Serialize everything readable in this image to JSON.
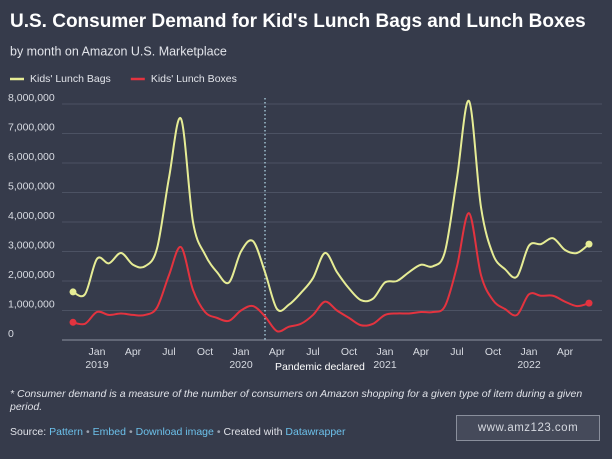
{
  "chart_data": {
    "type": "line",
    "title": "U.S. Consumer Demand for Kid's Lunch Bags and Lunch Boxes",
    "subtitle": "by month on Amazon U.S. Marketplace",
    "categories": [
      null,
      null,
      "Jan 2019",
      null,
      null,
      "Apr",
      null,
      null,
      "Jul",
      null,
      null,
      "Oct",
      null,
      null,
      "Jan 2020",
      null,
      null,
      "Apr",
      null,
      null,
      "Jul",
      null,
      null,
      "Oct",
      null,
      null,
      "Jan 2021",
      null,
      null,
      "Apr",
      null,
      null,
      "Jul",
      null,
      null,
      "Oct",
      null,
      null,
      "Jan 2022",
      null,
      null,
      "Apr",
      null,
      null
    ],
    "series": [
      {
        "name": "Kids' Lunch Bags",
        "color": "#e6ec95",
        "values": [
          1630000,
          1550000,
          2750000,
          2600000,
          2950000,
          2550000,
          2500000,
          3100000,
          5500000,
          7500000,
          4000000,
          2900000,
          2300000,
          1950000,
          3000000,
          3350000,
          2300000,
          1050000,
          1200000,
          1600000,
          2100000,
          2950000,
          2300000,
          1750000,
          1350000,
          1400000,
          1950000,
          2000000,
          2300000,
          2550000,
          2500000,
          3000000,
          5500000,
          8100000,
          4500000,
          2900000,
          2400000,
          2150000,
          3200000,
          3250000,
          3450000,
          3050000,
          2950000,
          3250000
        ]
      },
      {
        "name": "Kids' Lunch Boxes",
        "color": "#e3333f",
        "values": [
          600000,
          550000,
          950000,
          850000,
          900000,
          850000,
          850000,
          1100000,
          2200000,
          3150000,
          1700000,
          950000,
          750000,
          650000,
          1000000,
          1150000,
          800000,
          300000,
          450000,
          550000,
          850000,
          1300000,
          1000000,
          750000,
          500000,
          550000,
          850000,
          900000,
          900000,
          950000,
          950000,
          1150000,
          2500000,
          4300000,
          2200000,
          1350000,
          1050000,
          850000,
          1550000,
          1500000,
          1500000,
          1300000,
          1150000,
          1250000
        ]
      }
    ],
    "ylim": [
      0,
      8000000
    ],
    "yticks": [
      0,
      {
        "value": 1000000,
        "label": "1,000,000"
      },
      {
        "value": 2000000,
        "label": "2,000,000"
      },
      {
        "value": 3000000,
        "label": "3,000,000"
      },
      {
        "value": 4000000,
        "label": "4,000,000"
      },
      {
        "value": 5000000,
        "label": "5,000,000"
      },
      {
        "value": 6000000,
        "label": "6,000,000"
      },
      {
        "value": 7000000,
        "label": "7,000,000"
      },
      {
        "value": 8000000,
        "label": "8,000,000"
      }
    ],
    "grid": true,
    "annotation": {
      "text": "Pandemic declared",
      "at": 16
    },
    "note": "* Consumer demand is a measure of the number of consumers on Amazon shopping for a given type of item during a given period.",
    "source": {
      "label": "Source:",
      "links": [
        "Pattern",
        "Embed",
        "Download image"
      ],
      "separator": "•",
      "created": "Created with",
      "tool": "Datawrapper"
    },
    "watermark": "www.amz123.com"
  }
}
